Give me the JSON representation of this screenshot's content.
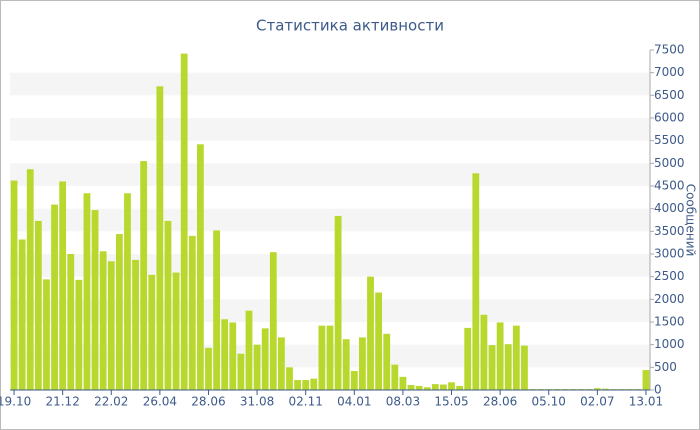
{
  "chart_data": {
    "type": "bar",
    "title": "Статистика активности",
    "y_label": "Сообщений",
    "categories": [
      "19.10",
      null,
      null,
      null,
      null,
      null,
      "21.12",
      null,
      null,
      null,
      null,
      null,
      "22.02",
      null,
      null,
      null,
      null,
      null,
      "26.04",
      null,
      null,
      null,
      null,
      null,
      "28.06",
      null,
      null,
      null,
      null,
      null,
      "31.08",
      null,
      null,
      null,
      null,
      null,
      "02.11",
      null,
      null,
      null,
      null,
      null,
      "04.01",
      null,
      null,
      null,
      null,
      null,
      "08.03",
      null,
      null,
      null,
      null,
      null,
      "15.05",
      null,
      null,
      null,
      null,
      null,
      "28.06",
      null,
      null,
      null,
      null,
      null,
      "05.10",
      null,
      null,
      null,
      null,
      null,
      "02.07",
      null,
      null,
      null,
      null,
      null,
      "13.01"
    ],
    "values": [
      4620,
      3320,
      4870,
      3730,
      2440,
      4090,
      4600,
      3000,
      2430,
      4340,
      3970,
      3060,
      2840,
      3440,
      4340,
      2870,
      5050,
      2540,
      6700,
      3730,
      2590,
      7420,
      3400,
      5420,
      930,
      3520,
      1560,
      1490,
      800,
      1750,
      1000,
      1360,
      3040,
      1160,
      500,
      220,
      220,
      250,
      1420,
      1420,
      3840,
      1120,
      420,
      1160,
      2500,
      2150,
      1240,
      560,
      290,
      110,
      90,
      60,
      130,
      120,
      170,
      90,
      1370,
      4780,
      1660,
      990,
      1490,
      1010,
      1420,
      980,
      20,
      20,
      20,
      20,
      20,
      20,
      20,
      20,
      40,
      30,
      20,
      20,
      20,
      20,
      440
    ],
    "color": "#b8d82e",
    "ylim": [
      0,
      7500
    ],
    "yticks": [
      0,
      500,
      1000,
      1500,
      2000,
      2500,
      3000,
      3500,
      4000,
      4500,
      5000,
      5500,
      6000,
      6500,
      7000,
      7500
    ],
    "grid": true
  }
}
